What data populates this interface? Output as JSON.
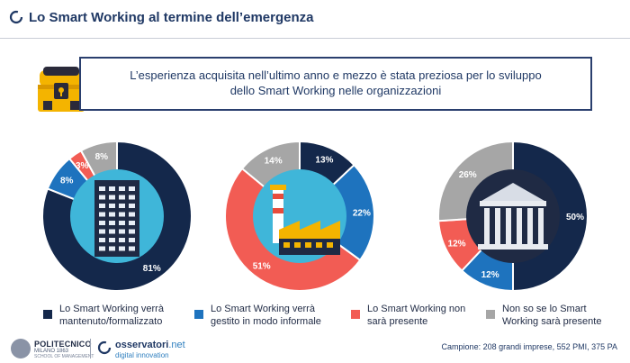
{
  "header": {
    "title": "Lo Smart Working al termine dell’emergenza"
  },
  "callout": {
    "line1": "L’esperienza acquisita nell’ultimo anno e mezzo è stata preziosa per lo sviluppo",
    "line2": "dello Smart Working nelle organizzazioni"
  },
  "colors": {
    "navy": "#14284b",
    "blue": "#1e73be",
    "red": "#f25c54",
    "gray": "#a6a6a6",
    "accent": "#1f3864"
  },
  "chart_data": [
    {
      "type": "pie",
      "donut": true,
      "center_icon": "office-building-icon",
      "series": [
        {
          "name": "Lo Smart Working verrà mantenuto/formalizzato",
          "value": 81,
          "label": "81%"
        },
        {
          "name": "Lo Smart Working verrà gestito in modo informale",
          "value": 8,
          "label": "8%"
        },
        {
          "name": "Lo Smart Working non sarà presente",
          "value": 3,
          "label": "3%"
        },
        {
          "name": "Non so se lo Smart Working sarà presente",
          "value": 8,
          "label": "8%"
        }
      ]
    },
    {
      "type": "pie",
      "donut": true,
      "center_icon": "factory-icon",
      "series": [
        {
          "name": "Lo Smart Working verrà mantenuto/formalizzato",
          "value": 13,
          "label": "13%"
        },
        {
          "name": "Lo Smart Working verrà gestito in modo informale",
          "value": 22,
          "label": "22%"
        },
        {
          "name": "Lo Smart Working non sarà presente",
          "value": 51,
          "label": "51%"
        },
        {
          "name": "Non so se lo Smart Working sarà presente",
          "value": 14,
          "label": "14%"
        }
      ]
    },
    {
      "type": "pie",
      "donut": true,
      "center_icon": "government-building-icon",
      "series": [
        {
          "name": "Lo Smart Working verrà mantenuto/formalizzato",
          "value": 50,
          "label": "50%"
        },
        {
          "name": "Lo Smart Working verrà gestito in modo informale",
          "value": 12,
          "label": "12%"
        },
        {
          "name": "Lo Smart Working non sarà presente",
          "value": 12,
          "label": "12%"
        },
        {
          "name": "Non so se lo Smart Working sarà presente",
          "value": 26,
          "label": "26%"
        }
      ]
    }
  ],
  "legend": [
    {
      "line1": "Lo Smart Working verrà",
      "line2": "mantenuto/formalizzato",
      "color": "#14284b"
    },
    {
      "line1": "Lo Smart Working verrà",
      "line2": "gestito in modo informale",
      "color": "#1e73be"
    },
    {
      "line1": "Lo Smart Working non",
      "line2": "sarà presente",
      "color": "#f25c54"
    },
    {
      "line1": "Non so se lo Smart",
      "line2": "Working sarà presente",
      "color": "#a6a6a6"
    }
  ],
  "footer": {
    "polimi_name": "POLITECNICO",
    "polimi_sub": "MILANO 1863",
    "polimi_sub2": "SCHOOL OF MANAGEMENT",
    "oss_name": "osservatori",
    "oss_name_suffix": ".net",
    "oss_sub": "digital innovation",
    "sample": "Campione: 208 grandi imprese, 552 PMI, 375 PA"
  }
}
